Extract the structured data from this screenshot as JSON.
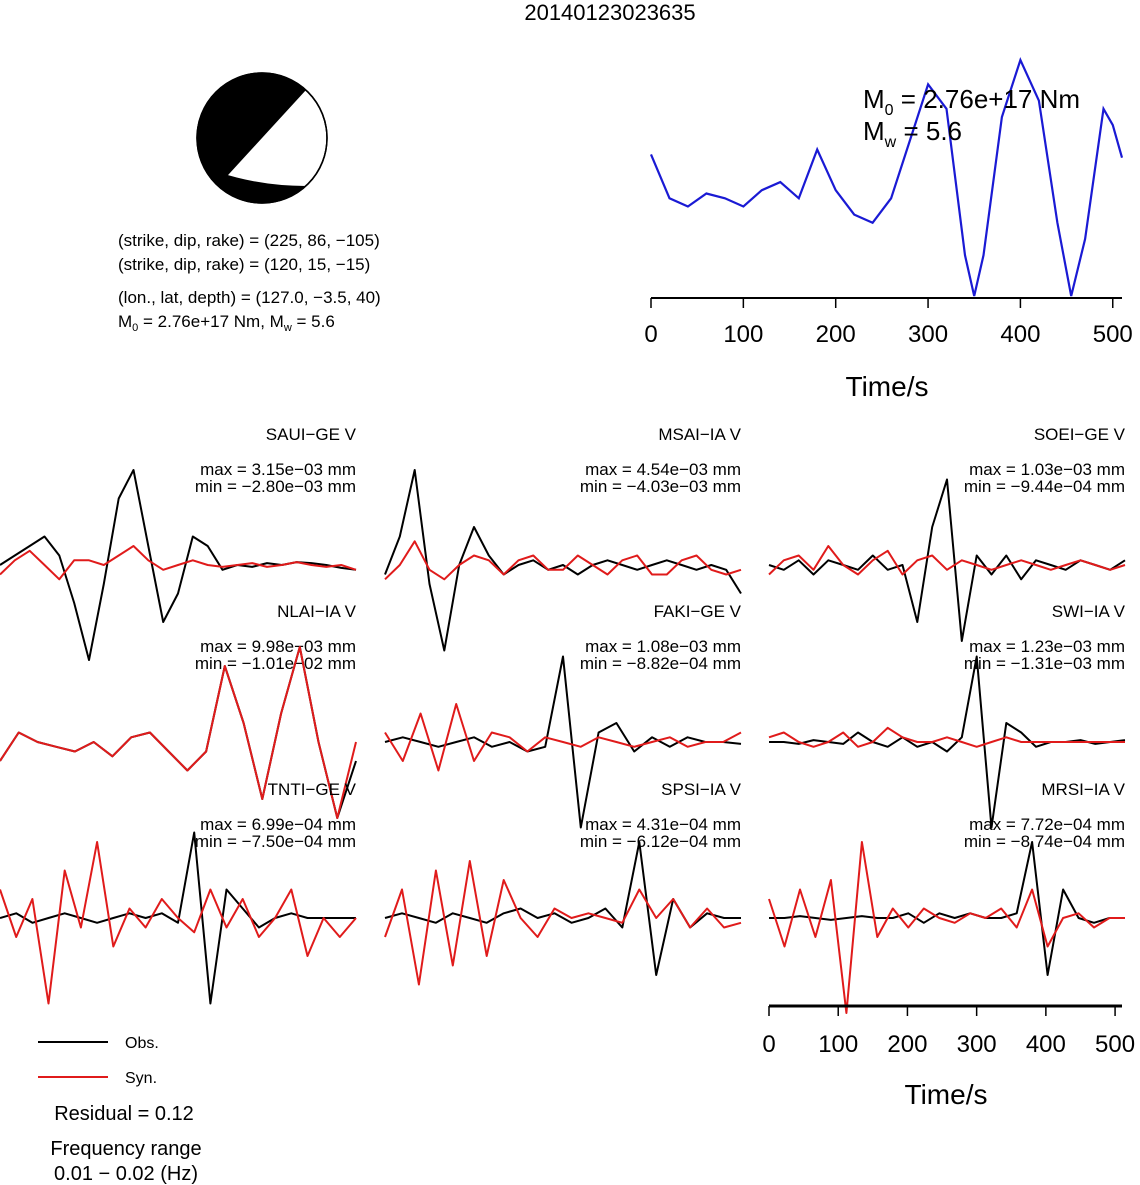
{
  "title": "20140123023635",
  "mechanism": {
    "plane1": "(strike, dip, rake) = (225, 86, −105)",
    "plane2": "(strike, dip, rake) = (120, 15, −15)",
    "location": "(lon., lat, depth) = (127.0, −3.5, 40)",
    "moment_line": [
      "M",
      "0",
      " = 2.76e+17 Nm, M",
      "w",
      " = 5.6"
    ]
  },
  "stf": {
    "m0_label": [
      "M",
      "0",
      " = 2.76e+17 Nm"
    ],
    "mw_label": [
      "M",
      "w",
      " = 5.6"
    ],
    "xlabel": "Time/s",
    "xticks": [
      "0",
      "100",
      "200",
      "300",
      "400",
      "500"
    ]
  },
  "traces_axis": {
    "xlabel": "Time/s",
    "xticks": [
      "0",
      "100",
      "200",
      "300",
      "400",
      "500"
    ]
  },
  "legend": {
    "obs": "Obs.",
    "syn": "Syn."
  },
  "residual": "Residual = 0.12",
  "freq_title": "Frequency range",
  "freq_value": "0.01 − 0.02 (Hz)",
  "colors": {
    "obs": "#000000",
    "syn": "#e01b1b",
    "stf": "#1a1ad4"
  },
  "chart_data": [
    {
      "type": "line",
      "name": "source time function",
      "xlabel": "Time/s",
      "xlim": [
        0,
        510
      ],
      "x": [
        0,
        20,
        40,
        60,
        80,
        100,
        120,
        140,
        160,
        180,
        200,
        220,
        240,
        260,
        280,
        300,
        320,
        340,
        350,
        360,
        380,
        400,
        420,
        440,
        455,
        470,
        490,
        500,
        510
      ],
      "y": [
        0.32,
        0.05,
        0.0,
        0.08,
        0.05,
        0.0,
        0.1,
        0.15,
        0.05,
        0.35,
        0.1,
        -0.05,
        -0.1,
        0.05,
        0.4,
        0.75,
        0.6,
        -0.3,
        -0.55,
        -0.3,
        0.55,
        0.9,
        0.65,
        -0.1,
        -0.55,
        -0.2,
        0.6,
        0.5,
        0.3
      ]
    },
    {
      "type": "line",
      "name": "waveform comparison",
      "xlabel": "Time/s",
      "xlim": [
        0,
        510
      ],
      "stations": [
        {
          "label": "SAUI−GE V",
          "max": "max = 3.15e−03 mm",
          "min": "min = −2.80e−03 mm",
          "obs": [
            0,
            0.1,
            0.2,
            0.3,
            0.1,
            -0.4,
            -1.0,
            -0.2,
            0.7,
            1.0,
            0.2,
            -0.6,
            -0.3,
            0.3,
            0.2,
            -0.05,
            0,
            -0.02,
            0.02,
            0,
            0.03,
            0.02,
            0,
            -0.03,
            -0.05
          ],
          "syn": [
            -0.1,
            0.05,
            0.15,
            0.0,
            -0.15,
            0.05,
            0.05,
            0.0,
            0.1,
            0.2,
            0.05,
            -0.05,
            0.0,
            0.05,
            0.0,
            -0.02,
            0.0,
            0.02,
            -0.02,
            0.0,
            0.03,
            0.0,
            -0.02,
            0.0,
            -0.05
          ]
        },
        {
          "label": "MSAI−IA V",
          "max": "max = 4.54e−03 mm",
          "min": "min = −4.03e−03 mm",
          "obs": [
            -0.1,
            0.3,
            1.0,
            -0.2,
            -0.9,
            0.0,
            0.4,
            0.1,
            -0.1,
            0.0,
            0.05,
            -0.05,
            0.0,
            -0.1,
            0.0,
            0.05,
            0.0,
            -0.05,
            0.0,
            0.05,
            0.0,
            -0.05,
            0.0,
            -0.05,
            -0.3
          ],
          "syn": [
            -0.15,
            0.0,
            0.25,
            -0.05,
            -0.15,
            0.0,
            0.1,
            0.05,
            -0.1,
            0.05,
            0.1,
            -0.05,
            -0.05,
            0.1,
            0.0,
            -0.1,
            0.05,
            0.1,
            -0.1,
            -0.1,
            0.05,
            0.1,
            -0.05,
            -0.1,
            -0.05
          ]
        },
        {
          "label": "SOEI−GE V",
          "max": "max = 1.03e−03 mm",
          "min": "min = −9.44e−04 mm",
          "obs": [
            0.0,
            -0.05,
            0.05,
            -0.1,
            0.05,
            0.0,
            -0.05,
            0.1,
            -0.05,
            0.0,
            -0.6,
            0.4,
            0.9,
            -0.8,
            0.1,
            -0.1,
            0.1,
            -0.15,
            0.05,
            0.0,
            -0.05,
            0.05,
            0.0,
            -0.05,
            0.05
          ],
          "syn": [
            -0.1,
            0.05,
            0.1,
            -0.05,
            0.2,
            0.0,
            -0.1,
            0.05,
            0.15,
            -0.1,
            0.05,
            0.1,
            -0.05,
            0.05,
            0.0,
            -0.05,
            0.0,
            0.05,
            0.0,
            -0.05,
            0.0,
            0.05,
            0.0,
            -0.05,
            0.0
          ]
        },
        {
          "label": "NLAI−IA V",
          "max": "max = 9.98e−03 mm",
          "min": "min = −1.01e−02 mm",
          "obs": [
            -0.2,
            0.1,
            0.0,
            -0.05,
            -0.1,
            0.0,
            -0.15,
            0.05,
            0.1,
            -0.1,
            -0.3,
            -0.1,
            0.8,
            0.2,
            -0.6,
            0.3,
            1.0,
            0.0,
            -0.8,
            -0.2
          ],
          "syn": [
            -0.2,
            0.1,
            0.0,
            -0.05,
            -0.1,
            0.0,
            -0.15,
            0.05,
            0.1,
            -0.1,
            -0.3,
            -0.1,
            0.8,
            0.2,
            -0.6,
            0.3,
            1.0,
            0.0,
            -0.8,
            0.0
          ]
        },
        {
          "label": "FAKI−GE V",
          "max": "max = 1.08e−03 mm",
          "min": "min = −8.82e−04 mm",
          "obs": [
            0.0,
            0.05,
            0.0,
            -0.05,
            0.0,
            0.05,
            -0.05,
            0.0,
            -0.1,
            -0.05,
            0.9,
            -0.9,
            0.1,
            0.2,
            -0.1,
            0.05,
            -0.05,
            0.05,
            0.0,
            0.0,
            -0.02
          ],
          "syn": [
            0.1,
            -0.2,
            0.3,
            -0.3,
            0.4,
            -0.2,
            0.1,
            0.05,
            -0.1,
            0.05,
            0.0,
            -0.05,
            0.05,
            0.0,
            -0.05,
            0.0,
            0.05,
            -0.05,
            0.0,
            0.0,
            0.1
          ]
        },
        {
          "label": "SWI−IA V",
          "max": "max = 1.23e−03 mm",
          "min": "min = −1.31e−03 mm",
          "obs": [
            0.0,
            0.0,
            -0.02,
            0.02,
            0.0,
            -0.02,
            0.1,
            0.0,
            -0.05,
            0.05,
            -0.05,
            0.0,
            -0.1,
            0.05,
            0.9,
            -0.9,
            0.2,
            0.1,
            -0.05,
            0.0,
            0.0,
            0.02,
            -0.02,
            0.0,
            0.02
          ],
          "syn": [
            0.05,
            0.1,
            0.0,
            -0.05,
            0.0,
            0.1,
            -0.05,
            0.0,
            0.15,
            0.05,
            0.0,
            0.0,
            0.05,
            0.0,
            -0.05,
            0.0,
            0.05,
            0.0,
            0.0,
            0.0,
            0.0,
            0.0,
            0.0,
            0.0,
            0.0
          ]
        },
        {
          "label": "TNTI−GE V",
          "max": "max = 6.99e−04 mm",
          "min": "min = −7.50e−04 mm",
          "obs": [
            0.0,
            0.05,
            -0.05,
            0.0,
            0.05,
            0.0,
            -0.05,
            0.0,
            0.05,
            0.0,
            0.05,
            -0.05,
            0.9,
            -0.9,
            0.3,
            0.1,
            -0.1,
            0.0,
            0.05,
            0.0,
            0.0,
            0.0,
            0.0
          ],
          "syn": [
            0.3,
            -0.2,
            0.2,
            -0.9,
            0.5,
            -0.1,
            0.8,
            -0.3,
            0.1,
            -0.1,
            0.2,
            0.0,
            -0.15,
            0.3,
            -0.1,
            0.2,
            -0.2,
            0.0,
            0.3,
            -0.4,
            0.0,
            -0.2,
            0.0
          ]
        },
        {
          "label": "SPSI−IA V",
          "max": "max = 4.31e−04 mm",
          "min": "min = −6.12e−04 mm",
          "obs": [
            0.0,
            0.05,
            0.0,
            -0.05,
            0.05,
            0.0,
            -0.05,
            0.05,
            0.1,
            0.0,
            0.05,
            -0.05,
            0.0,
            0.1,
            -0.1,
            0.8,
            -0.6,
            0.2,
            -0.1,
            0.05,
            0.0,
            0.0
          ],
          "syn": [
            -0.2,
            0.3,
            -0.7,
            0.5,
            -0.5,
            0.6,
            -0.4,
            0.4,
            0.0,
            -0.2,
            0.1,
            0.0,
            0.05,
            0.0,
            -0.05,
            0.3,
            0.0,
            0.2,
            -0.1,
            0.1,
            -0.1,
            -0.05
          ]
        },
        {
          "label": "MRSI−IA V",
          "max": "max = 7.72e−04 mm",
          "min": "min = −8.74e−04 mm",
          "obs": [
            0.0,
            0.0,
            0.02,
            0.0,
            -0.02,
            0.0,
            0.02,
            0.0,
            0.0,
            0.05,
            -0.05,
            0.05,
            0.0,
            0.05,
            0.0,
            0.0,
            0.05,
            0.8,
            -0.6,
            0.3,
            0.0,
            -0.05,
            0.0,
            0.0
          ],
          "syn": [
            0.2,
            -0.3,
            0.3,
            -0.2,
            0.4,
            -1.0,
            0.8,
            -0.2,
            0.1,
            -0.1,
            0.1,
            0.0,
            -0.05,
            0.05,
            0.0,
            0.1,
            -0.1,
            0.3,
            -0.3,
            0.0,
            0.05,
            -0.1,
            0.0,
            0.0
          ]
        }
      ]
    }
  ]
}
